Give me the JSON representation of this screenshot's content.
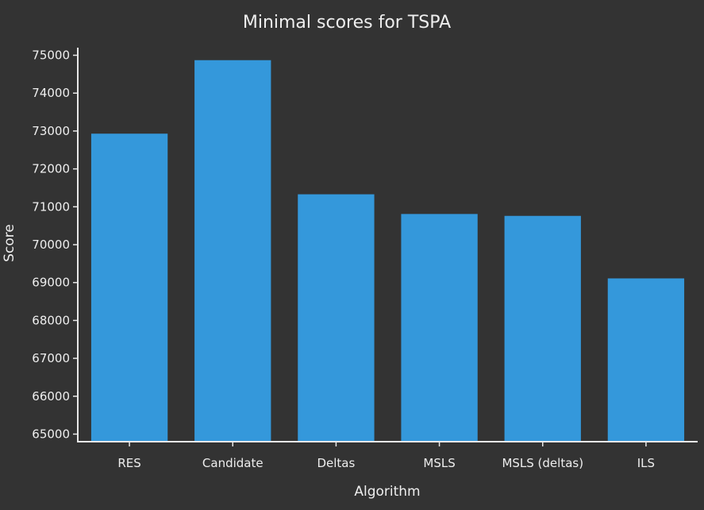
{
  "chart_data": {
    "type": "bar",
    "title": "Minimal scores for TSPA",
    "xlabel": "Algorithm",
    "ylabel": "Score",
    "categories": [
      "RES",
      "Candidate",
      "Deltas",
      "MSLS",
      "MSLS (deltas)",
      "ILS"
    ],
    "values": [
      72930,
      74870,
      71330,
      70810,
      70760,
      69110
    ],
    "ylim": [
      64800,
      75200
    ],
    "yticks": [
      65000,
      66000,
      67000,
      68000,
      69000,
      70000,
      71000,
      72000,
      73000,
      74000,
      75000
    ],
    "ytick_labels": [
      "65000",
      "66000",
      "67000",
      "68000",
      "69000",
      "70000",
      "71000",
      "72000",
      "73000",
      "74000",
      "75000"
    ],
    "grid": false,
    "legend": "none",
    "bar_color": "#3498db",
    "background": "#333333",
    "text_color": "#eeeeee"
  }
}
